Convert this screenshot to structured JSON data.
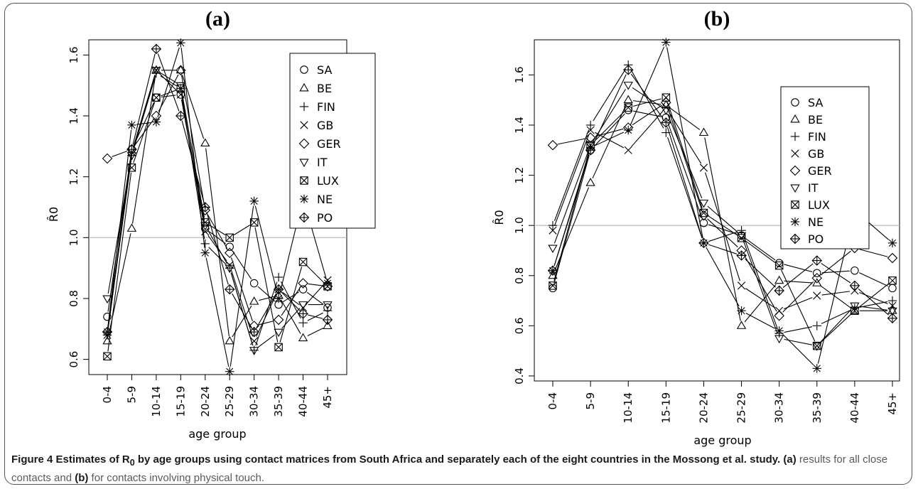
{
  "figure": {
    "caption_label": "Figure 4",
    "caption_title_1": "Estimates of R",
    "caption_title_sub": "0",
    "caption_title_2": " by age groups using contact matrices from South Africa and separately each of the eight countries in the Mossong et al. study.",
    "caption_a_tag": "(a)",
    "caption_a_text": " results for all close contacts and ",
    "caption_b_tag": "(b)",
    "caption_b_text": " for contacts involving physical touch."
  },
  "chart_data": [
    {
      "type": "line",
      "title": "(a)",
      "xlabel": "age group",
      "ylabel": "R̂0",
      "categories": [
        "0-4",
        "5-9",
        "10-14",
        "15-19",
        "20-24",
        "25-29",
        "30-34",
        "35-39",
        "40-44",
        "45+"
      ],
      "ylim": [
        0.55,
        1.65
      ],
      "yticks": [
        0.6,
        0.8,
        1.0,
        1.2,
        1.4,
        1.6
      ],
      "ytick_labels": [
        "0.6",
        "0.8",
        "1.0",
        "1.2",
        "1.4",
        "1.6"
      ],
      "reference_line": 1.0,
      "legend_position": "top-right",
      "series": [
        {
          "name": "SA",
          "marker": "circle",
          "values": [
            0.74,
            1.29,
            1.46,
            1.47,
            1.03,
            0.97,
            0.85,
            0.78,
            0.83,
            0.77
          ]
        },
        {
          "name": "BE",
          "marker": "triangle",
          "values": [
            0.66,
            1.03,
            1.55,
            1.55,
            1.31,
            0.66,
            0.79,
            0.81,
            0.67,
            0.71
          ]
        },
        {
          "name": "FIN",
          "marker": "plus",
          "values": [
            0.68,
            1.27,
            1.54,
            1.49,
            0.98,
            0.9,
            0.63,
            0.87,
            0.72,
            0.76
          ]
        },
        {
          "name": "GB",
          "marker": "cross",
          "values": [
            0.68,
            1.28,
            1.55,
            1.47,
            1.02,
            0.91,
            0.66,
            0.83,
            0.77,
            0.86
          ]
        },
        {
          "name": "GER",
          "marker": "diamond",
          "values": [
            1.26,
            1.29,
            1.4,
            1.55,
            1.09,
            0.95,
            0.71,
            0.73,
            0.85,
            0.84
          ]
        },
        {
          "name": "IT",
          "marker": "invtriangle",
          "values": [
            0.8,
            1.27,
            1.55,
            1.5,
            1.04,
            0.9,
            0.63,
            0.69,
            0.78,
            0.78
          ]
        },
        {
          "name": "LUX",
          "marker": "boxx",
          "values": [
            0.61,
            1.23,
            1.46,
            1.49,
            1.05,
            1.0,
            1.05,
            0.64,
            0.92,
            0.84
          ]
        },
        {
          "name": "NE",
          "marker": "star",
          "values": [
            0.69,
            1.37,
            1.38,
            1.64,
            0.95,
            0.56,
            1.12,
            0.8,
            1.13,
            0.85
          ]
        },
        {
          "name": "PO",
          "marker": "diamondplus",
          "values": [
            0.69,
            1.29,
            1.62,
            1.4,
            1.1,
            0.83,
            0.69,
            0.83,
            0.75,
            0.73
          ]
        }
      ]
    },
    {
      "type": "line",
      "title": "(b)",
      "xlabel": "age group",
      "ylabel": "R̂0",
      "categories": [
        "0-4",
        "5-9",
        "10-14",
        "15-19",
        "20-24",
        "25-29",
        "30-34",
        "35-39",
        "40-44",
        "45+"
      ],
      "ylim": [
        0.38,
        1.74
      ],
      "yticks": [
        0.4,
        0.6,
        0.8,
        1.0,
        1.2,
        1.4,
        1.6
      ],
      "ytick_labels": [
        "0.4",
        "0.6",
        "0.8",
        "1.0",
        "1.2",
        "1.4",
        "1.6"
      ],
      "reference_line": 1.0,
      "legend_position": "top-right",
      "series": [
        {
          "name": "SA",
          "marker": "circle",
          "values": [
            0.75,
            1.3,
            1.46,
            1.43,
            1.01,
            0.96,
            0.85,
            0.81,
            0.82,
            0.75
          ]
        },
        {
          "name": "BE",
          "marker": "triangle",
          "values": [
            0.8,
            1.17,
            1.5,
            1.48,
            1.37,
            0.6,
            0.78,
            0.77,
            0.66,
            0.66
          ]
        },
        {
          "name": "FIN",
          "marker": "plus",
          "values": [
            1.0,
            1.4,
            1.64,
            1.37,
            0.93,
            0.98,
            0.57,
            0.6,
            0.67,
            0.7
          ]
        },
        {
          "name": "GB",
          "marker": "cross",
          "values": [
            0.98,
            1.38,
            1.3,
            1.47,
            1.23,
            0.76,
            0.66,
            0.72,
            0.74,
            0.68
          ]
        },
        {
          "name": "GER",
          "marker": "diamond",
          "values": [
            1.32,
            1.35,
            1.39,
            1.49,
            1.04,
            0.9,
            0.64,
            0.79,
            0.91,
            0.87
          ]
        },
        {
          "name": "IT",
          "marker": "invtriangle",
          "values": [
            0.91,
            1.32,
            1.56,
            1.46,
            1.09,
            0.96,
            0.55,
            0.52,
            0.68,
            0.66
          ]
        },
        {
          "name": "LUX",
          "marker": "boxx",
          "values": [
            0.76,
            1.32,
            1.47,
            1.51,
            1.05,
            0.95,
            0.84,
            0.52,
            0.66,
            0.78
          ]
        },
        {
          "name": "NE",
          "marker": "star",
          "values": [
            0.82,
            1.31,
            1.38,
            1.73,
            0.93,
            0.66,
            0.58,
            0.43,
            1.06,
            0.93
          ]
        },
        {
          "name": "PO",
          "marker": "diamondplus",
          "values": [
            0.82,
            1.3,
            1.62,
            1.41,
            0.93,
            0.88,
            0.74,
            0.86,
            0.76,
            0.63
          ]
        }
      ]
    }
  ]
}
